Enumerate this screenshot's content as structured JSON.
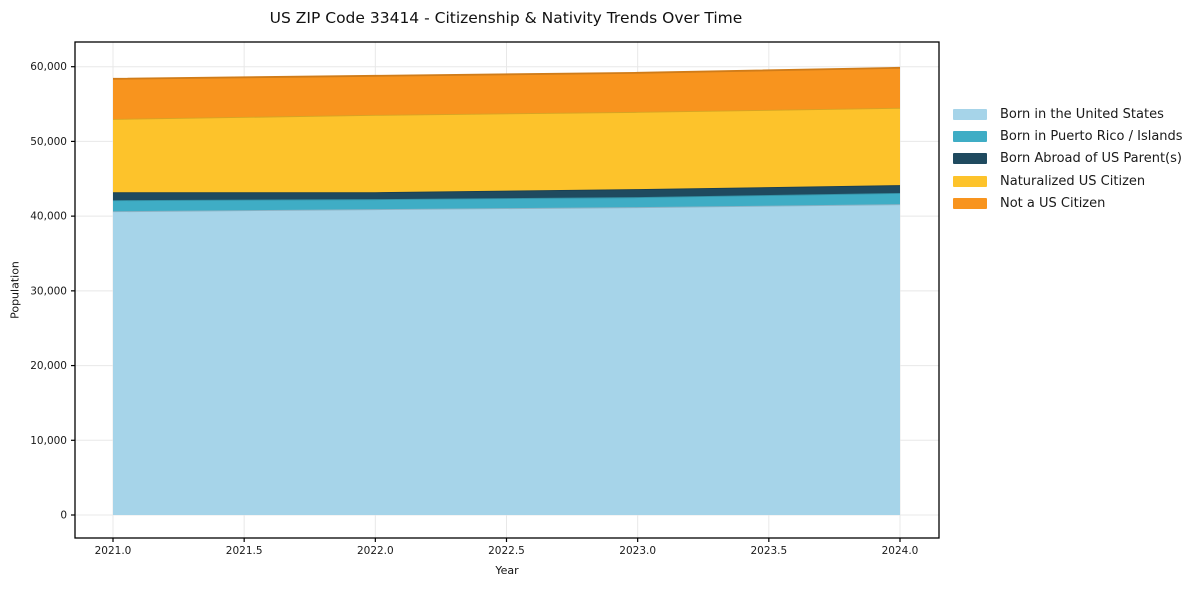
{
  "chart_data": {
    "type": "area",
    "stacked": true,
    "title": "US ZIP Code 33414 - Citizenship & Nativity Trends Over Time",
    "xlabel": "Year",
    "ylabel": "Population",
    "x": [
      2021,
      2022,
      2023,
      2024
    ],
    "series": [
      {
        "name": "Born in the United States",
        "color": "#a6d4e9",
        "values": [
          40650,
          40930,
          41200,
          41600
        ]
      },
      {
        "name": "Born in Puerto Rico / Islands",
        "color": "#3fadc5",
        "values": [
          1480,
          1340,
          1340,
          1500
        ]
      },
      {
        "name": "Born Abroad of US Parent(s)",
        "color": "#1f4a5f",
        "values": [
          1070,
          930,
          1080,
          1050
        ]
      },
      {
        "name": "Naturalized US Citizen",
        "color": "#fdc32b",
        "values": [
          9800,
          10350,
          10330,
          10350
        ]
      },
      {
        "name": "Not a US Citizen",
        "color": "#f8941e",
        "values": [
          5380,
          5230,
          5230,
          5350
        ]
      }
    ],
    "stacked_totals": [
      58380,
      58780,
      59180,
      59850
    ],
    "xticks": {
      "values": [
        2021.0,
        2021.5,
        2022.0,
        2022.5,
        2023.0,
        2023.5,
        2024.0
      ],
      "labels": [
        "2021.0",
        "2021.5",
        "2022.0",
        "2022.5",
        "2023.0",
        "2023.5",
        "2024.0"
      ]
    },
    "yticks": {
      "values": [
        0,
        10000,
        20000,
        30000,
        40000,
        50000,
        60000
      ],
      "labels": [
        "0",
        "10,000",
        "20,000",
        "30,000",
        "40,000",
        "50,000",
        "60,000"
      ]
    },
    "ylim": [
      -3100,
      63500
    ],
    "xlim": [
      2020.86,
      2024.15
    ],
    "grid": true,
    "legend_position": "right-outside"
  }
}
